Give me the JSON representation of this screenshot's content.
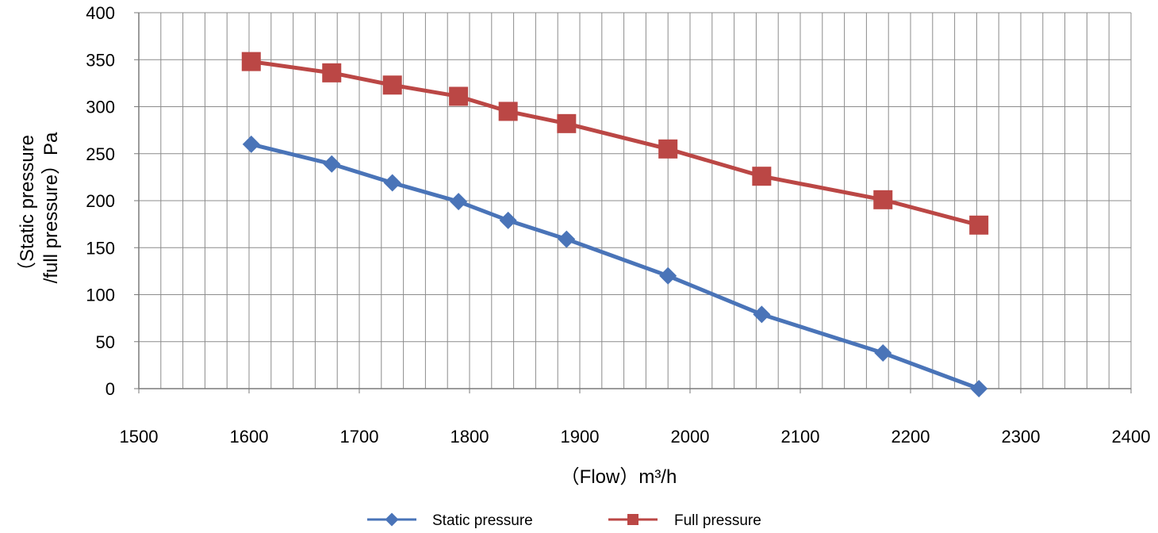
{
  "chart_data": {
    "type": "line",
    "title": "",
    "xlabel": "（Flow）m³/h",
    "ylabel_lines": [
      "（Static pressure",
      "/full pressure）Pa"
    ],
    "xlim": [
      1500,
      2400
    ],
    "ylim": [
      0,
      400
    ],
    "x_ticks": [
      1500,
      1600,
      1700,
      1800,
      1900,
      2000,
      2100,
      2200,
      2300,
      2400
    ],
    "y_ticks": [
      0,
      50,
      100,
      150,
      200,
      250,
      300,
      350,
      400
    ],
    "x_minor_step": 20,
    "grid": true,
    "legend_position": "bottom",
    "series": [
      {
        "name": "Static pressure",
        "color": "#4a74b8",
        "marker": "diamond",
        "x": [
          1602,
          1675,
          1730,
          1790,
          1835,
          1888,
          1980,
          2065,
          2175,
          2262
        ],
        "y": [
          260,
          239,
          219,
          199,
          179,
          159,
          120,
          79,
          38,
          0
        ]
      },
      {
        "name": "Full pressure",
        "color": "#bb4745",
        "marker": "square",
        "x": [
          1602,
          1675,
          1730,
          1790,
          1835,
          1888,
          1980,
          2065,
          2175,
          2262
        ],
        "y": [
          348,
          336,
          323,
          311,
          295,
          282,
          255,
          226,
          201,
          174
        ]
      }
    ]
  }
}
